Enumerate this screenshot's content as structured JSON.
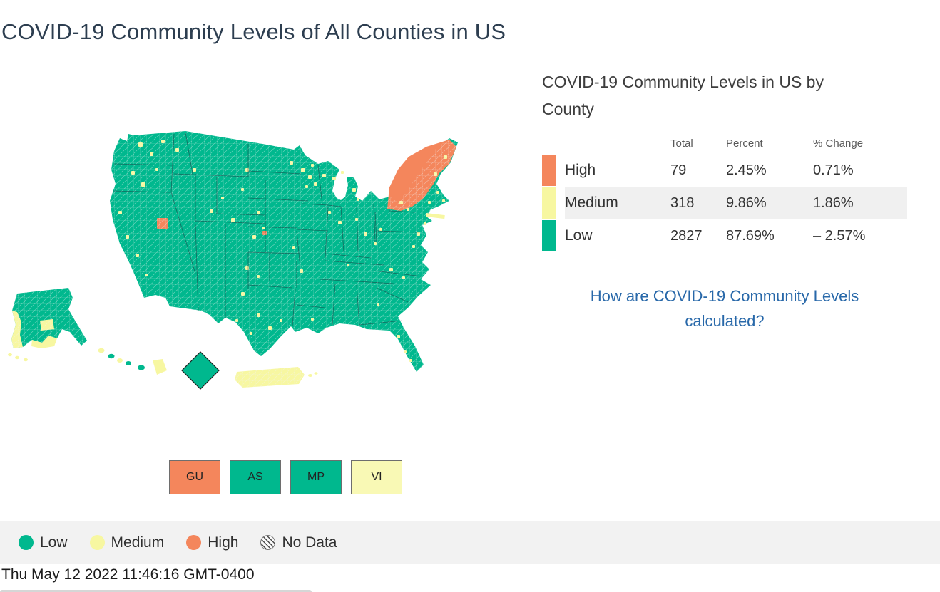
{
  "title": "COVID-19 Community Levels of All Counties in US",
  "timestamp": "Thu May 12 2022 11:46:16 GMT-0400",
  "colors": {
    "low": "#00B88E",
    "medium": "#F7F7A1",
    "high": "#F4865C",
    "link": "#2868A9",
    "title_text": "#2D3E50",
    "legend_bg": "#F2F2F2",
    "shaded_row": "#F0F0F0"
  },
  "panel": {
    "title": "COVID-19 Community Levels in US by County",
    "columns": [
      "Total",
      "Percent",
      "% Change"
    ],
    "rows": [
      {
        "label": "High",
        "total": "79",
        "percent": "2.45%",
        "change": "0.71%",
        "color": "#F4865C"
      },
      {
        "label": "Medium",
        "total": "318",
        "percent": "9.86%",
        "change": "1.86%",
        "color": "#F7F7A1"
      },
      {
        "label": "Low",
        "total": "2827",
        "percent": "87.69%",
        "change": "– 2.57%",
        "color": "#00B88E"
      }
    ],
    "link_text": "How are COVID-19 Community Levels calculated?"
  },
  "territories": [
    {
      "code": "GU",
      "color": "#F4865C"
    },
    {
      "code": "AS",
      "color": "#00B88E"
    },
    {
      "code": "MP",
      "color": "#00B88E"
    },
    {
      "code": "VI",
      "color": "#F9F9B5"
    }
  ],
  "legend": [
    {
      "label": "Low",
      "color": "#00B88E"
    },
    {
      "label": "Medium",
      "color": "#F7F7A1"
    },
    {
      "label": "High",
      "color": "#F4865C"
    },
    {
      "label": "No Data",
      "color": "hatch"
    }
  ]
}
